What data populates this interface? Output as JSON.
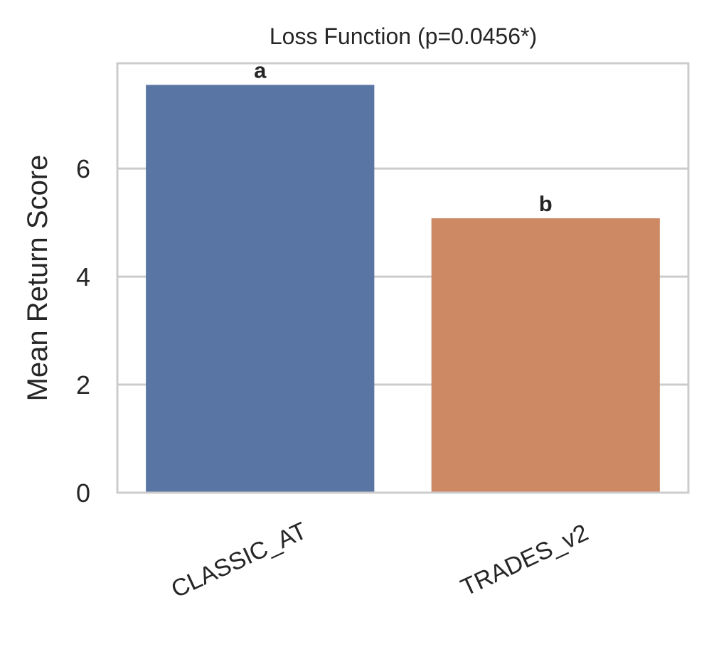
{
  "chart_data": {
    "type": "bar",
    "title": "Loss Function  (p=0.0456*)",
    "xlabel": "",
    "ylabel": "Mean Return Score",
    "categories": [
      "CLASSIC_AT",
      "TRADES_v2"
    ],
    "values": [
      7.55,
      5.08
    ],
    "bar_labels": [
      "a",
      "b"
    ],
    "colors": [
      "#5975a4",
      "#cc8963"
    ],
    "ylim": [
      0,
      7.95
    ],
    "yticks": [
      0,
      2,
      4,
      6
    ],
    "grid": "horizontal",
    "legend": "none"
  }
}
